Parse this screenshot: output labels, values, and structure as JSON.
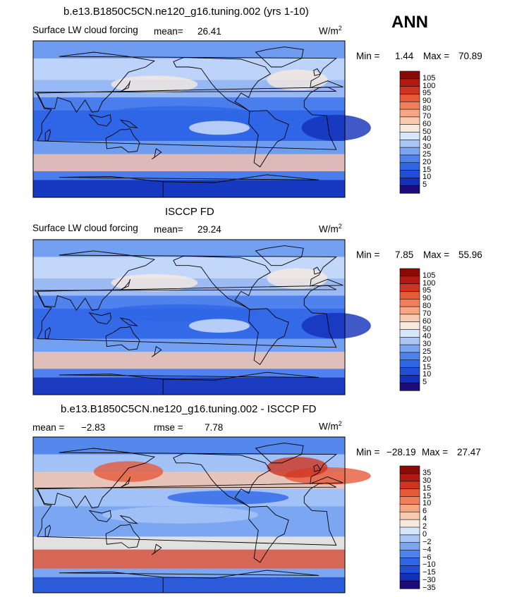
{
  "season": "ANN",
  "colors": {
    "abs_scale": [
      "#1f0a7a",
      "#1230b8",
      "#1f4fd6",
      "#2f66e6",
      "#4f82ec",
      "#7aa6f2",
      "#a9c6f7",
      "#d6e6fb",
      "#f6eadf",
      "#f9c9b0",
      "#f7a582",
      "#f27f5c",
      "#e65a3a",
      "#cf3421",
      "#b01a12",
      "#8a0a06"
    ],
    "diff_scale": [
      "#1f0a7a",
      "#1230b8",
      "#1f4fd6",
      "#2f66e6",
      "#4f82ec",
      "#7aa6f2",
      "#a9c6f7",
      "#d6e6fb",
      "#f6eadf",
      "#f9c9b0",
      "#f7a582",
      "#f27f5c",
      "#e65a3a",
      "#cf3421",
      "#b01a12",
      "#8a0a06"
    ],
    "coast": "#000000"
  },
  "panels": [
    {
      "title": "b.e13.B1850C5CN.ne120_g16.tuning.002 (yrs 1-10)",
      "variable": "Surface LW cloud forcing",
      "mean_label": "mean=",
      "mean_value": "26.41",
      "units_main": "W/m",
      "units_sup": "2",
      "min_label": "Min =",
      "min_value": "1.44",
      "max_label": "Max =",
      "max_value": "70.89",
      "base_level": 3,
      "colorbar_ticks": [
        "105",
        "100",
        "95",
        "90",
        "80",
        "70",
        "60",
        "50",
        "40",
        "30",
        "25",
        "20",
        "15",
        "10",
        "5"
      ]
    },
    {
      "title": "ISCCP FD",
      "variable": "Surface LW cloud forcing",
      "mean_label": "mean=",
      "mean_value": "29.24",
      "units_main": "W/m",
      "units_sup": "2",
      "min_label": "Min =",
      "min_value": "7.85",
      "max_label": "Max =",
      "max_value": "55.96",
      "base_level": 4,
      "colorbar_ticks": [
        "105",
        "100",
        "95",
        "90",
        "80",
        "70",
        "60",
        "50",
        "40",
        "30",
        "25",
        "20",
        "15",
        "10",
        "5"
      ]
    },
    {
      "title": "b.e13.B1850C5CN.ne120_g16.tuning.002 - ISCCP FD",
      "mean_label": "mean =",
      "mean_value": "−2.83",
      "rmse_label": "rmse =",
      "rmse_value": "7.78",
      "units_main": "W/m",
      "units_sup": "2",
      "min_label": "Min =",
      "min_value": "−28.19",
      "max_label": "Max =",
      "max_value": "27.47",
      "base_level": 5,
      "colorbar_ticks": [
        "35",
        "30",
        "15",
        "15",
        "10",
        "6",
        "4",
        "2",
        "0",
        "−2",
        "−4",
        "−6",
        "−10",
        "−15",
        "−30",
        "−35"
      ]
    }
  ],
  "chart_data": [
    {
      "type": "heatmap",
      "title": "b.e13.B1850C5CN.ne120_g16.tuning.002 (yrs 1-10)",
      "variable": "Surface LW cloud forcing",
      "units": "W/m2",
      "mean": 26.41,
      "min": 1.44,
      "max": 70.89,
      "levels": [
        5,
        10,
        15,
        20,
        25,
        30,
        40,
        50,
        60,
        70,
        80,
        90,
        95,
        100,
        105
      ]
    },
    {
      "type": "heatmap",
      "title": "ISCCP FD",
      "variable": "Surface LW cloud forcing",
      "units": "W/m2",
      "mean": 29.24,
      "min": 7.85,
      "max": 55.96,
      "levels": [
        5,
        10,
        15,
        20,
        25,
        30,
        40,
        50,
        60,
        70,
        80,
        90,
        95,
        100,
        105
      ]
    },
    {
      "type": "heatmap",
      "title": "b.e13.B1850C5CN.ne120_g16.tuning.002 - ISCCP FD",
      "units": "W/m2",
      "mean": -2.83,
      "rmse": 7.78,
      "min": -28.19,
      "max": 27.47,
      "levels": [
        -35,
        -30,
        -15,
        -10,
        -6,
        -4,
        -2,
        0,
        2,
        4,
        6,
        10,
        15,
        15,
        30,
        35
      ]
    }
  ]
}
